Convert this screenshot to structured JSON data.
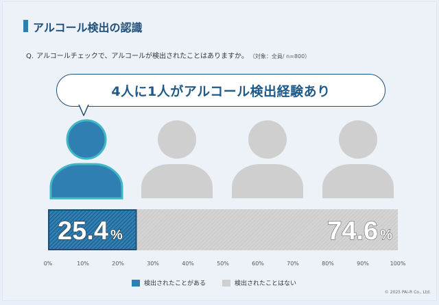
{
  "title": "アルコール検出の認識",
  "question": {
    "mark": "Q.",
    "text": "アルコールチェックで、アルコールが検出されたことはありますか。",
    "note": "（対象：全員/ n=800）"
  },
  "callout": "4人に1人がアルコール検出経験あり",
  "colors": {
    "detected": "#2f7fb3",
    "not_detected": "#cfcfcf",
    "accent_border": "#1c4f78",
    "person_outline": "#3fb8c3"
  },
  "icons": [
    "person-icon",
    "person-icon",
    "person-icon",
    "person-icon"
  ],
  "chart_data": {
    "type": "bar",
    "orientation": "horizontal-stacked",
    "xlim": [
      0,
      100
    ],
    "ticks": [
      "0%",
      "10%",
      "20%",
      "30%",
      "40%",
      "50%",
      "60%",
      "70%",
      "80%",
      "90%",
      "100%"
    ],
    "series": [
      {
        "name": "検出されたことがある",
        "value": 25.4,
        "label": "25.4",
        "unit": "%"
      },
      {
        "name": "検出されたことはない",
        "value": 74.6,
        "label": "74.6",
        "unit": "%"
      }
    ],
    "legend_position": "bottom"
  },
  "copyright": "© 2025 PAi-R Co., Ltd."
}
